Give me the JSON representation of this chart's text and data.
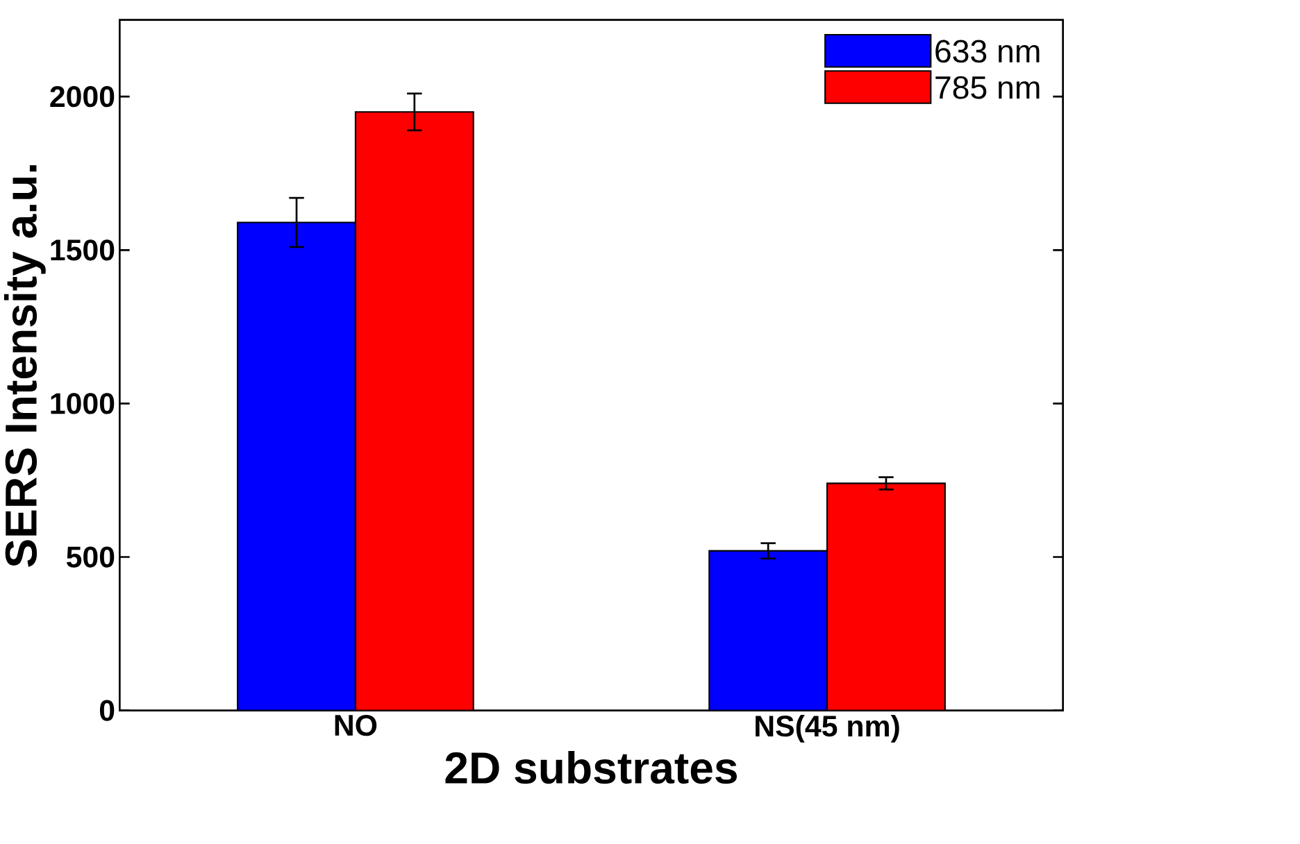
{
  "chart_data": {
    "type": "bar",
    "xlabel": "2D substrates",
    "ylabel": "SERS Intensity a.u.",
    "categories": [
      "NO",
      "NS(45 nm)"
    ],
    "series": [
      {
        "name": "633 nm",
        "color": "#0000ff",
        "values": [
          1590,
          520
        ],
        "errors": [
          80,
          25
        ]
      },
      {
        "name": "785 nm",
        "color": "#ff0000",
        "values": [
          1950,
          740
        ],
        "errors": [
          60,
          20
        ]
      }
    ],
    "ylim": [
      0,
      2250
    ],
    "yticks": [
      0,
      500,
      1000,
      1500,
      2000
    ],
    "grid": false,
    "legend": "top right"
  }
}
